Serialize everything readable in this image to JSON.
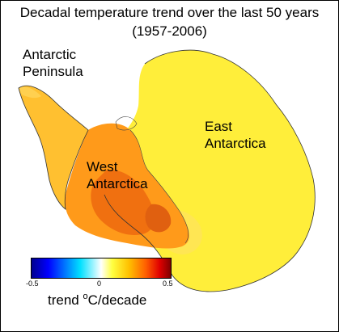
{
  "title_line1": "Decadal temperature trend over the last 50 years",
  "title_line2": "(1957-2006)",
  "labels": {
    "peninsula_line1": "Antarctic",
    "peninsula_line2": "Peninsula",
    "west_line1": "West",
    "west_line2": "Antarctica",
    "east_line1": "East",
    "east_line2": "Antarctica"
  },
  "colorbar": {
    "ticks": [
      "-0.5",
      "0",
      "0.5"
    ],
    "label_prefix": "trend ",
    "label_degree": "o",
    "label_unit": "C/decade",
    "range": [
      -0.5,
      0.5
    ],
    "colors": [
      "#00008f",
      "#0000ff",
      "#0080ff",
      "#00e0ff",
      "#ffffff",
      "#ffff40",
      "#ffc000",
      "#ff6000",
      "#e00000",
      "#800000"
    ]
  },
  "map_colors": {
    "east": "#ffee3a",
    "west": "#ff9a1a",
    "west_core": "#f07010",
    "peninsula": "#ffc030"
  }
}
